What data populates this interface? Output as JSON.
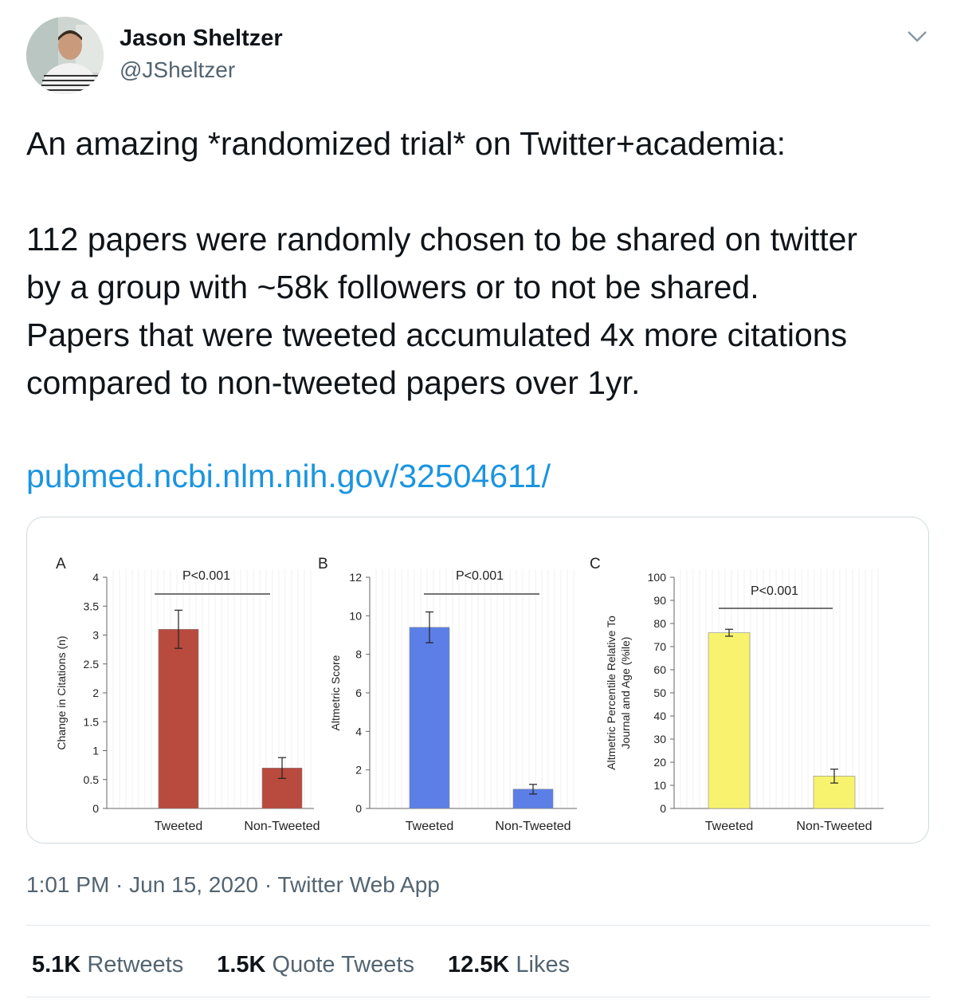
{
  "user": {
    "display_name": "Jason Sheltzer",
    "handle": "@JSheltzer"
  },
  "tweet": {
    "line1": "An amazing *randomized trial* on Twitter+academia:",
    "line2": "112 papers were randomly chosen to be shared on twitter",
    "line3": "by a group with ~58k followers or to not be shared.",
    "line4": "Papers that were tweeted accumulated 4x more citations",
    "line5": "compared to non-tweeted papers over 1yr.",
    "link": "pubmed.ncbi.nlm.nih.gov/32504611/"
  },
  "meta": {
    "time": "1:01 PM",
    "sep1": " · ",
    "date": "Jun 15, 2020",
    "sep2": " · ",
    "app": "Twitter Web App"
  },
  "stats": {
    "retweets_count": "5.1K",
    "retweets_label": " Retweets",
    "quotes_count": "1.5K",
    "quotes_label": " Quote Tweets",
    "likes_count": "12.5K",
    "likes_label": " Likes"
  },
  "icons": {
    "caret": "chevron-down-icon"
  },
  "colors": {
    "link": "#1b95e0",
    "bar_a": "#b84a3e",
    "bar_b": "#5b7fe6",
    "bar_c": "#f7f36e"
  },
  "chart_data": [
    {
      "type": "bar",
      "panel_label": "A",
      "categories": [
        "Tweeted",
        "Non-Tweeted"
      ],
      "values": [
        3.1,
        0.7
      ],
      "error": [
        0.33,
        0.18
      ],
      "ylabel": "Change in Citations (n)",
      "ylim": [
        0,
        4
      ],
      "yticks": [
        0,
        0.5,
        1,
        1.5,
        2,
        2.5,
        3,
        3.5,
        4
      ],
      "annotation": "P<0.001",
      "color": "#b84a3e"
    },
    {
      "type": "bar",
      "panel_label": "B",
      "categories": [
        "Tweeted",
        "Non-Tweeted"
      ],
      "values": [
        9.4,
        1.0
      ],
      "error": [
        0.8,
        0.25
      ],
      "ylabel": "Altmetric Score",
      "ylim": [
        0,
        12
      ],
      "yticks": [
        0,
        2,
        4,
        6,
        8,
        10,
        12
      ],
      "annotation": "P<0.001",
      "color": "#5b7fe6"
    },
    {
      "type": "bar",
      "panel_label": "C",
      "categories": [
        "Tweeted",
        "Non-Tweeted"
      ],
      "values": [
        76,
        14
      ],
      "error": [
        1.5,
        3
      ],
      "ylabel": "Altmetric Percentile Relative To Journal and Age (%ile)",
      "ylabel_lines": [
        "Altmetric Percentile Relative To",
        "Journal and Age (%ile)"
      ],
      "ylim": [
        0,
        100
      ],
      "yticks": [
        0,
        10,
        20,
        30,
        40,
        50,
        60,
        70,
        80,
        90,
        100
      ],
      "annotation": "P<0.001",
      "color": "#f7f36e"
    }
  ]
}
